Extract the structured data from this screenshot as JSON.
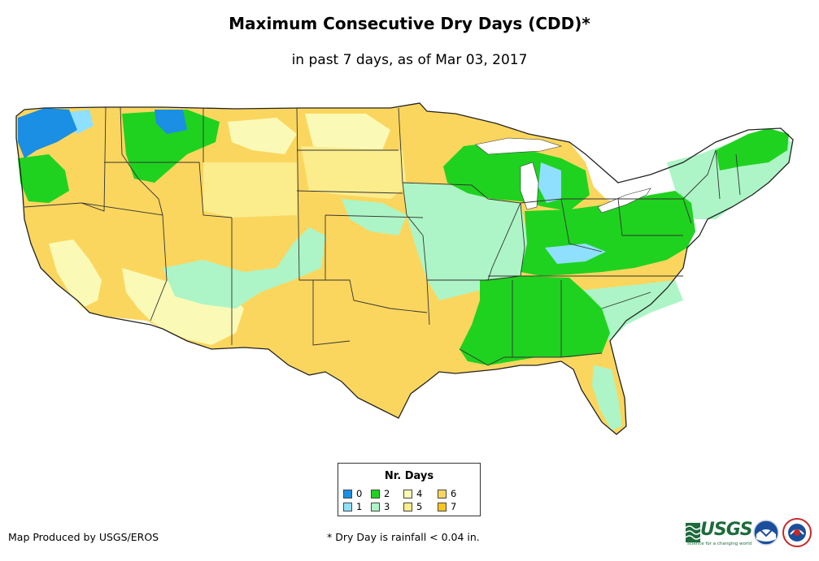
{
  "title": "Maximum Consecutive Dry Days (CDD)*",
  "subtitle": "in past 7 days, as of Mar 03, 2017",
  "legend": {
    "title": "Nr. Days",
    "items": [
      {
        "label": "0",
        "color": "#1a8fe3"
      },
      {
        "label": "1",
        "color": "#8fe0ff"
      },
      {
        "label": "2",
        "color": "#1fd21f"
      },
      {
        "label": "3",
        "color": "#adf5c6"
      },
      {
        "label": "4",
        "color": "#fafab6"
      },
      {
        "label": "5",
        "color": "#fbec8c"
      },
      {
        "label": "6",
        "color": "#fbd65e"
      },
      {
        "label": "7",
        "color": "#fbc51e"
      }
    ]
  },
  "credit": "Map Produced by USGS/EROS",
  "footnote": "* Dry Day is rainfall < 0.04 in.",
  "logos": {
    "usgs": "USGS",
    "usgs_tagline": "science for a changing world",
    "noaa": "noaa",
    "nws": "NATIONAL WEATHER SERVICE"
  }
}
